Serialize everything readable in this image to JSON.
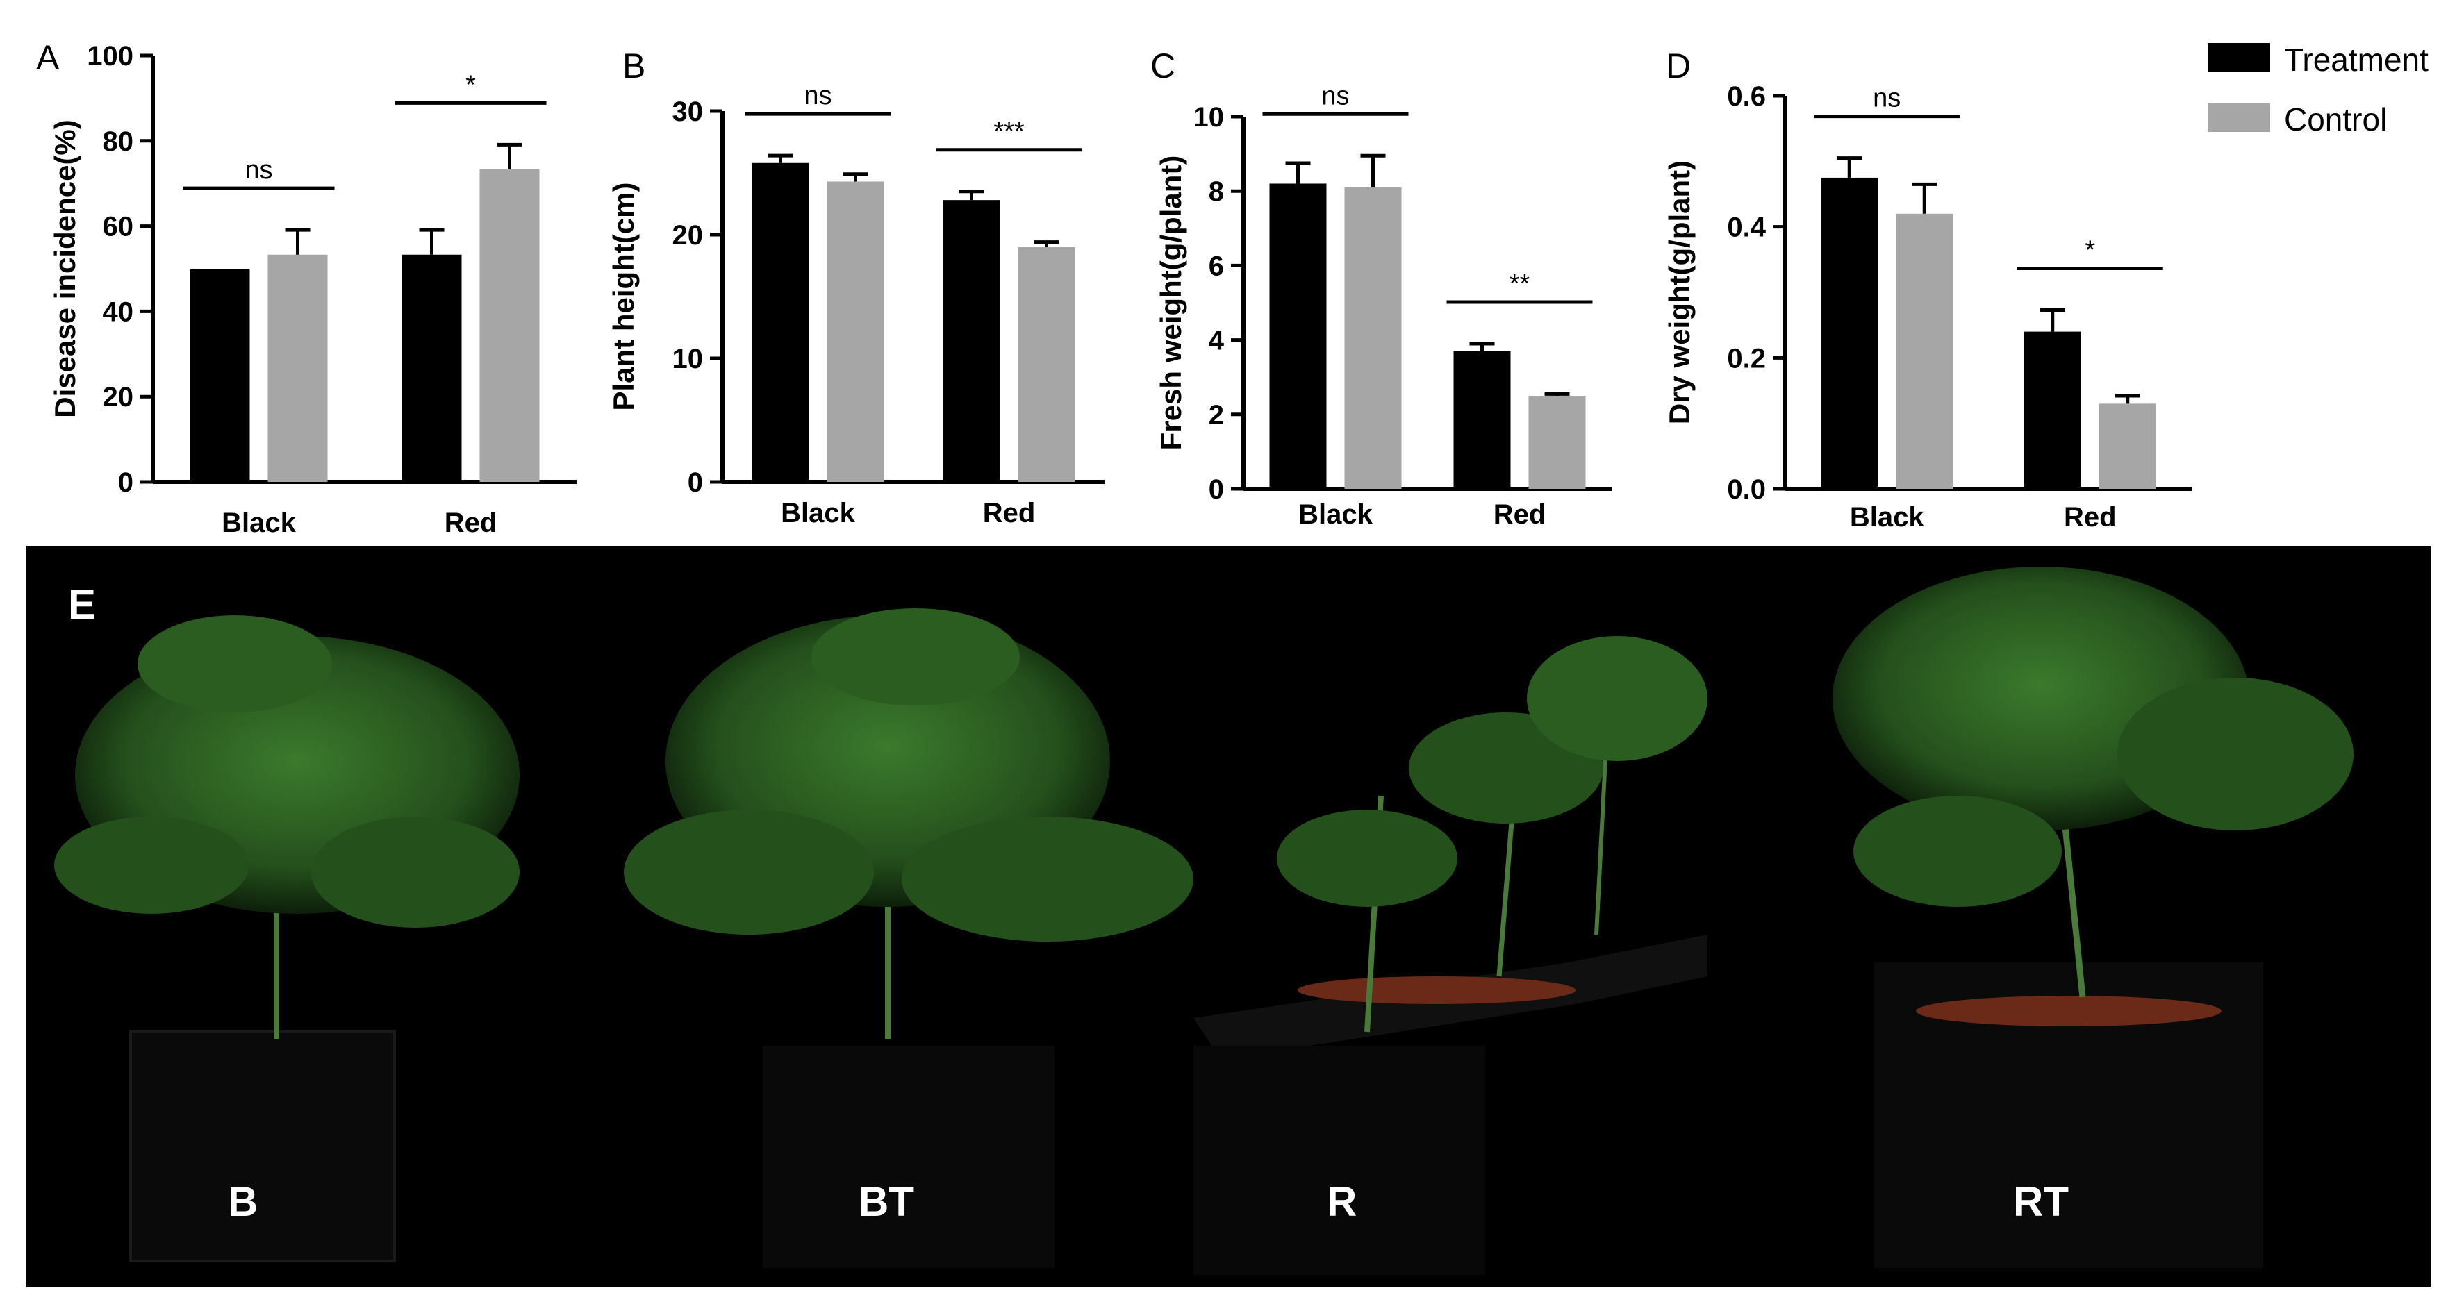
{
  "chart_data": [
    {
      "panel": "A",
      "type": "bar",
      "categories": [
        "Black",
        "Red"
      ],
      "ylabel": "Disease incidence(%)",
      "ylim": [
        0,
        100
      ],
      "yticks": [
        "0",
        "20",
        "40",
        "60",
        "80",
        "100"
      ],
      "series": [
        {
          "name": "Treatment",
          "values": [
            50,
            53.3
          ],
          "errors": [
            0,
            5.8
          ]
        },
        {
          "name": "Control",
          "values": [
            53.3,
            73.3
          ],
          "errors": [
            5.8,
            5.8
          ]
        }
      ],
      "significance": [
        "ns",
        "*"
      ]
    },
    {
      "panel": "B",
      "type": "bar",
      "categories": [
        "Black",
        "Red"
      ],
      "ylabel": "Plant height(cm)",
      "ylim": [
        0,
        30
      ],
      "yticks": [
        "0",
        "10",
        "20",
        "30"
      ],
      "series": [
        {
          "name": "Treatment",
          "values": [
            25.8,
            22.8
          ],
          "errors": [
            0.6,
            0.7
          ]
        },
        {
          "name": "Control",
          "values": [
            24.3,
            19.0
          ],
          "errors": [
            0.6,
            0.4
          ]
        }
      ],
      "significance": [
        "ns",
        "***"
      ]
    },
    {
      "panel": "C",
      "type": "bar",
      "categories": [
        "Black",
        "Red"
      ],
      "ylabel": "Fresh weight(g/plant)",
      "ylim": [
        0,
        10
      ],
      "yticks": [
        "0",
        "2",
        "4",
        "6",
        "8",
        "10"
      ],
      "series": [
        {
          "name": "Treatment",
          "values": [
            8.2,
            3.7
          ],
          "errors": [
            0.55,
            0.2
          ]
        },
        {
          "name": "Control",
          "values": [
            8.1,
            2.5
          ],
          "errors": [
            0.85,
            0.05
          ]
        }
      ],
      "significance": [
        "ns",
        "**"
      ]
    },
    {
      "panel": "D",
      "type": "bar",
      "categories": [
        "Black",
        "Red"
      ],
      "ylabel": "Dry weight(g/plant)",
      "ylim": [
        0,
        0.6
      ],
      "yticks": [
        "0.0",
        "0.2",
        "0.4",
        "0.6"
      ],
      "series": [
        {
          "name": "Treatment",
          "values": [
            0.475,
            0.24
          ],
          "errors": [
            0.03,
            0.033
          ]
        },
        {
          "name": "Control",
          "values": [
            0.42,
            0.13
          ],
          "errors": [
            0.045,
            0.012
          ]
        }
      ],
      "significance": [
        "ns",
        "*"
      ]
    }
  ],
  "legend": {
    "items": [
      {
        "label": "Treatment",
        "color": "#000000"
      },
      {
        "label": "Control",
        "color": "#a6a6a6"
      }
    ],
    "placement": "top-right"
  },
  "colors": {
    "treatment": "#000000",
    "control": "#a6a6a6",
    "photo_background": "#000000",
    "plant_green": "#2f5d23"
  },
  "photo": {
    "panel": "E",
    "labels": [
      "B",
      "BT",
      "R",
      "RT"
    ]
  }
}
